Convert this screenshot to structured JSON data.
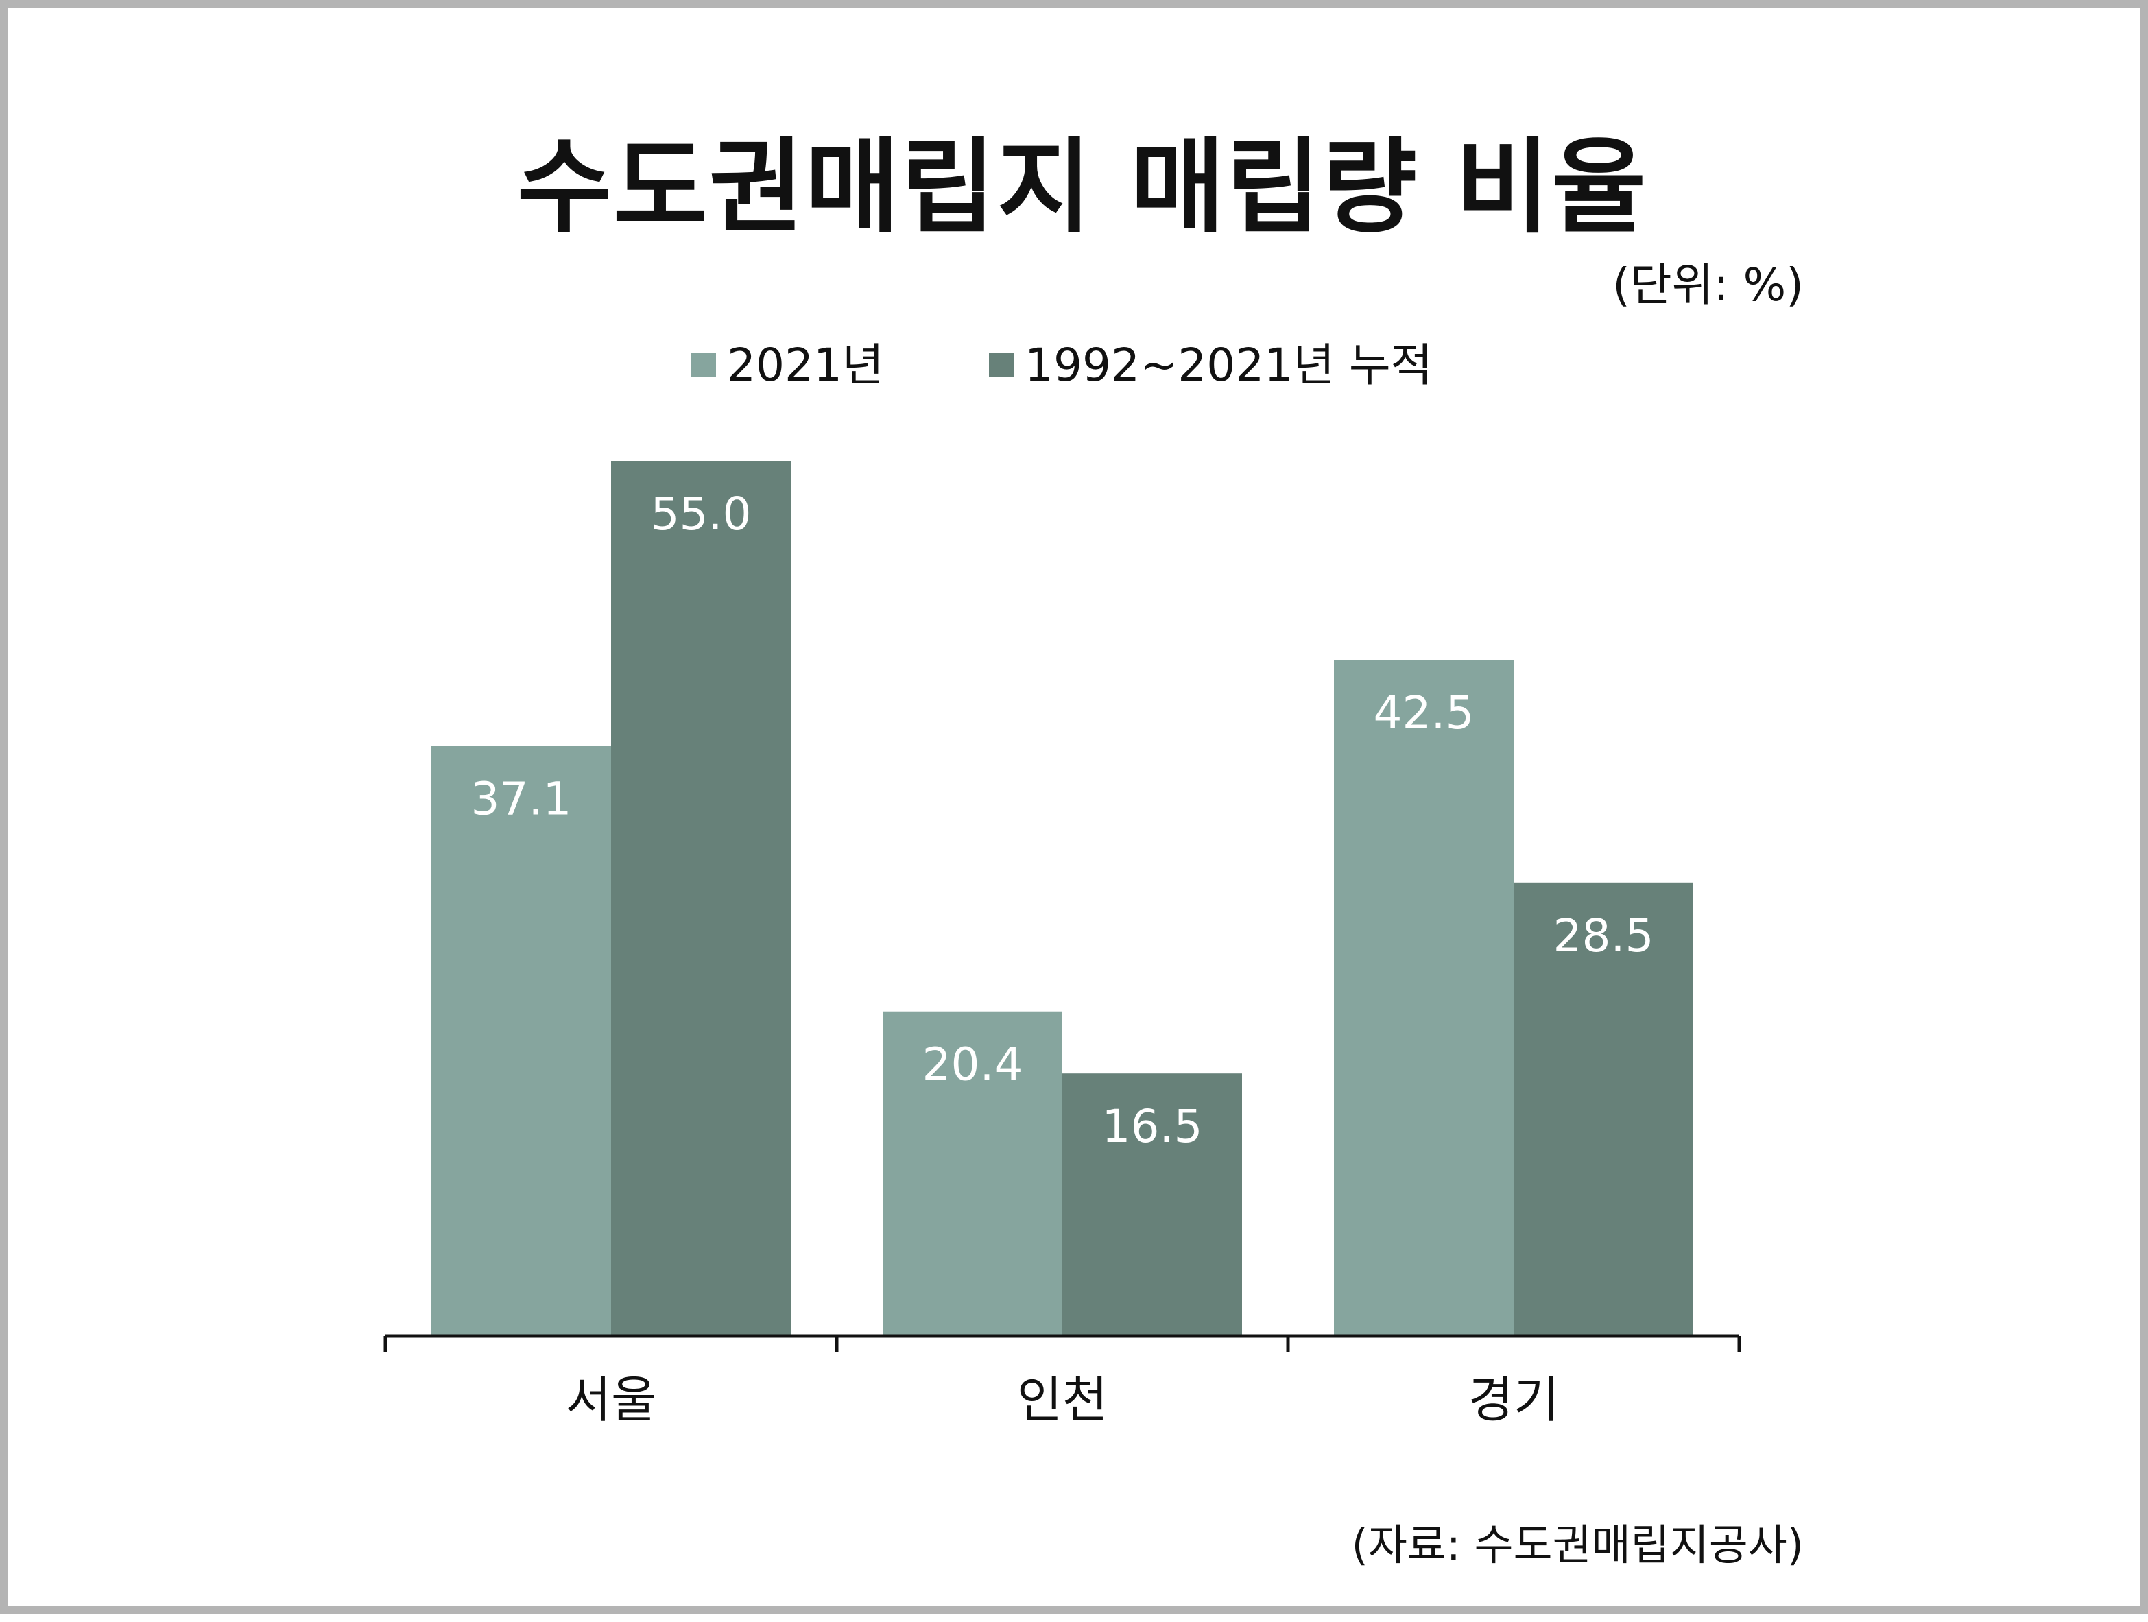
{
  "chart_data": {
    "type": "bar",
    "title": "수도권매립지 매립량 비율",
    "unit": "(단위: %)",
    "source": "(자료: 수도권매립지공사)",
    "categories": [
      "서울",
      "인천",
      "경기"
    ],
    "series": [
      {
        "name": "2021년",
        "values": [
          37.1,
          20.4,
          42.5
        ],
        "color": "#86a59e"
      },
      {
        "name": "1992~2021년 누적",
        "values": [
          55.0,
          16.5,
          28.5
        ],
        "color": "#678179"
      }
    ],
    "value_labels": [
      [
        "37.1",
        "20.4",
        "42.5"
      ],
      [
        "55.0",
        "16.5",
        "28.5"
      ]
    ],
    "ylim": [
      0,
      55.0
    ],
    "grid": false,
    "legend_position": "top-center",
    "data_labels": "inside-top",
    "data_label_color": "#ffffff",
    "axis_color": "#111111"
  }
}
